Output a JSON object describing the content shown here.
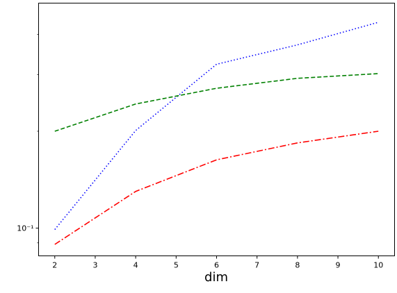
{
  "chart_data": {
    "type": "line",
    "title": "",
    "xlabel": "dim",
    "ylabel": "",
    "yscale": "log",
    "xlim": [
      1.6,
      10.4
    ],
    "ylim": [
      0.082,
      0.5
    ],
    "xticks": [
      2,
      3,
      4,
      5,
      6,
      7,
      8,
      9,
      10
    ],
    "xtick_labels": [
      "2",
      "3",
      "4",
      "5",
      "6",
      "7",
      "8",
      "9",
      "10"
    ],
    "yticks": [
      0.1
    ],
    "ytick_labels": [
      "10⁻¹"
    ],
    "grid": false,
    "legend": "none",
    "x": [
      2,
      4,
      6,
      8,
      10
    ],
    "series": [
      {
        "color": "#0000ff",
        "linestyle": "dotted",
        "values": [
          0.099,
          0.201,
          0.323,
          0.371,
          0.436
        ]
      },
      {
        "color": "#008000",
        "linestyle": "dashed",
        "values": [
          0.2,
          0.243,
          0.272,
          0.292,
          0.302
        ]
      },
      {
        "color": "#ff0000",
        "linestyle": "dashdot",
        "values": [
          0.089,
          0.13,
          0.163,
          0.184,
          0.2
        ]
      }
    ]
  }
}
